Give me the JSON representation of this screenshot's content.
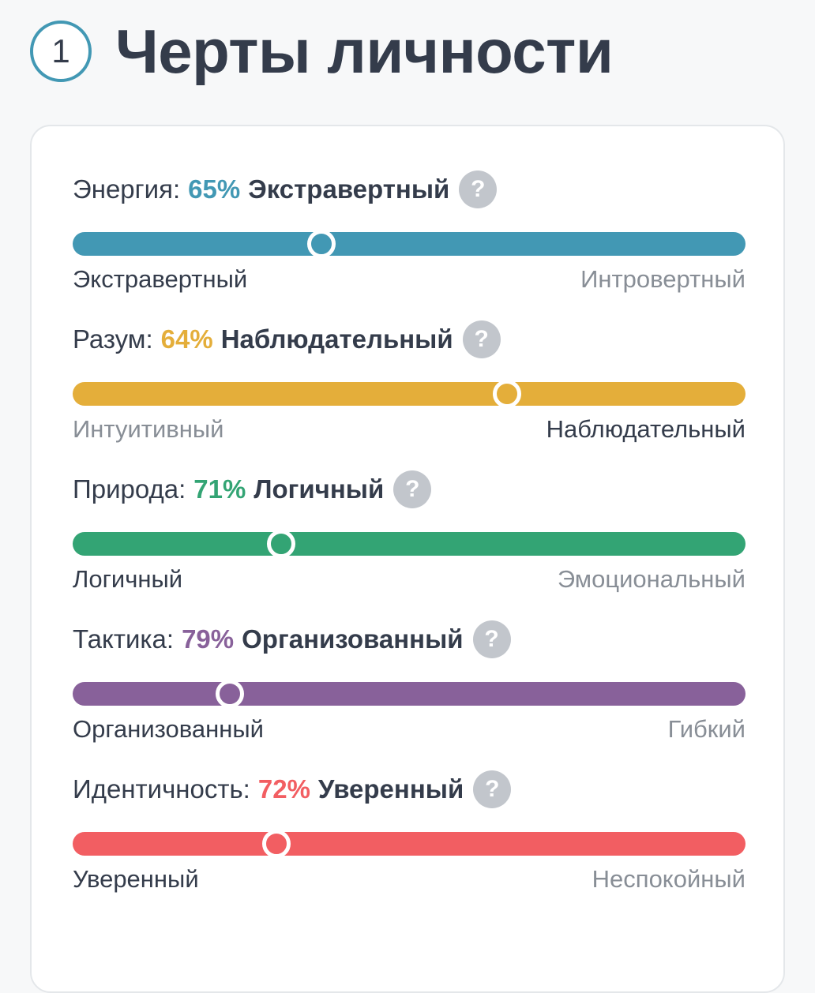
{
  "header": {
    "step_number": "1",
    "title": "Черты личности"
  },
  "traits": [
    {
      "name": "Энергия:",
      "percent": "65%",
      "result": "Экстравертный",
      "left_label": "Экстравертный",
      "right_label": "Интровертный",
      "active_side": "left",
      "marker_position": 0.37,
      "color": "#4298b4"
    },
    {
      "name": "Разум:",
      "percent": "64%",
      "result": "Наблюдательный",
      "left_label": "Интуитивный",
      "right_label": "Наблюдательный",
      "active_side": "right",
      "marker_position": 0.645,
      "color": "#e4ae3a"
    },
    {
      "name": "Природа:",
      "percent": "71%",
      "result": "Логичный",
      "left_label": "Логичный",
      "right_label": "Эмоциональный",
      "active_side": "left",
      "marker_position": 0.31,
      "color": "#33a474"
    },
    {
      "name": "Тактика:",
      "percent": "79%",
      "result": "Организованный",
      "left_label": "Организованный",
      "right_label": "Гибкий",
      "active_side": "left",
      "marker_position": 0.233,
      "color": "#88619a"
    },
    {
      "name": "Идентичность:",
      "percent": "72%",
      "result": "Уверенный",
      "left_label": "Уверенный",
      "right_label": "Неспокойный",
      "active_side": "left",
      "marker_position": 0.303,
      "color": "#f25e62"
    }
  ],
  "icons": {
    "help": "?"
  }
}
